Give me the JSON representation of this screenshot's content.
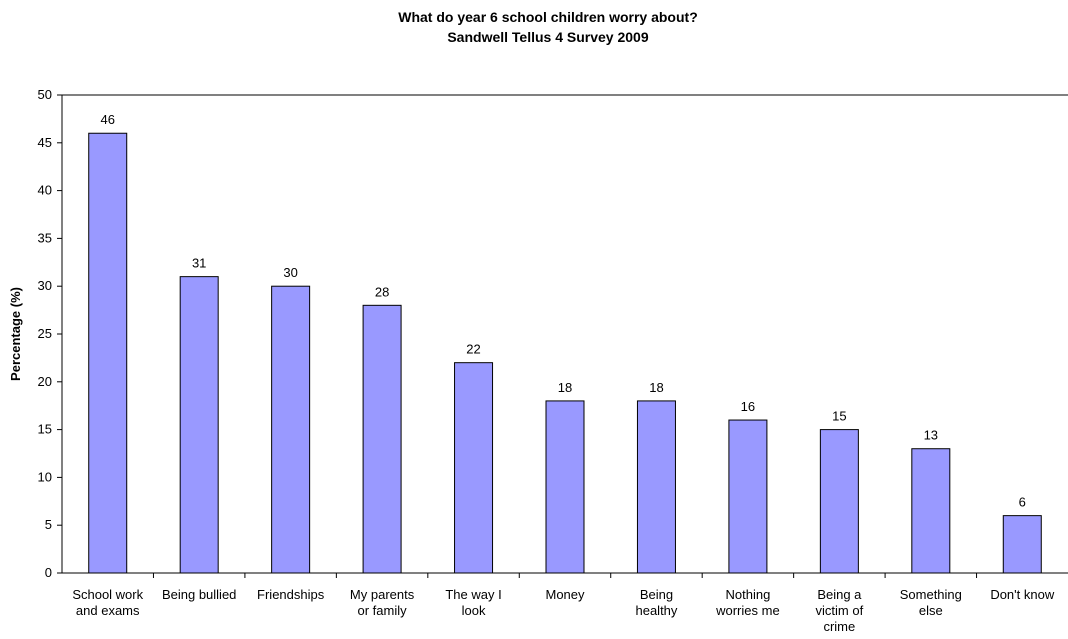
{
  "chart_data": {
    "type": "bar",
    "title": "What do year 6 school children worry about?",
    "subtitle": "Sandwell Tellus 4 Survey 2009",
    "y_label": "Percentage (%)",
    "categories": [
      "School work\nand exams",
      "Being bullied",
      "Friendships",
      "My parents\nor family",
      "The way I\nlook",
      "Money",
      "Being\nhealthy",
      "Nothing\nworries me",
      "Being a\nvictim of\ncrime",
      "Something\nelse",
      "Don't know"
    ],
    "values": [
      46,
      31,
      30,
      28,
      22,
      18,
      18,
      16,
      15,
      13,
      6
    ],
    "color": "#9999ff",
    "ylim": [
      0,
      50
    ],
    "yticks": [
      0,
      5,
      10,
      15,
      20,
      25,
      30,
      35,
      40,
      45,
      50
    ],
    "grid": false
  }
}
